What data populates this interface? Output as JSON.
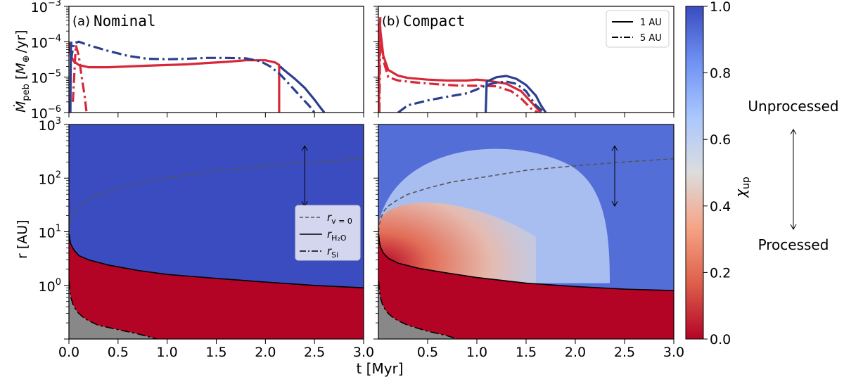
{
  "chart_data": [
    {
      "type": "line",
      "panel": "top-left",
      "label": "(a)",
      "title": "Nominal",
      "ylabel_mathtext": "Ṁ_peb [M⊕/yr]",
      "ylabel": {
        "mdot": "Ṁ",
        "sub": "peb",
        "pre": "[",
        "earth": "M",
        "earth_sub": "⊕",
        "post": "/yr]"
      },
      "yscale": "log",
      "ylim": [
        1e-06,
        0.001
      ],
      "xlim": [
        0,
        3
      ],
      "yticks": [
        {
          "base": "10",
          "exp": "−6",
          "value": 1e-06
        },
        {
          "base": "10",
          "exp": "−5",
          "value": 1e-05
        },
        {
          "base": "10",
          "exp": "−4",
          "value": 0.0001
        },
        {
          "base": "10",
          "exp": "−3",
          "value": 0.001
        }
      ],
      "series": [
        {
          "name": "",
          "color": "#d62839",
          "linestyle": "solid",
          "x": [
            0.003,
            0.02,
            0.05,
            0.1,
            0.2,
            0.4,
            0.6,
            0.8,
            1.0,
            1.2,
            1.4,
            1.6,
            1.8,
            2.0,
            2.1,
            2.14,
            2.14
          ],
          "y": [
            0.0001,
            4e-05,
            2.8e-05,
            2.2e-05,
            1.9e-05,
            1.9e-05,
            2e-05,
            2.1e-05,
            2.2e-05,
            2.3e-05,
            2.5e-05,
            2.7e-05,
            3e-05,
            3e-05,
            2.6e-05,
            2.2e-05,
            1e-06
          ]
        },
        {
          "name": "",
          "color": "#d62839",
          "linestyle": "dashdot",
          "x": [
            0.04,
            0.07,
            0.1,
            0.13,
            0.16,
            0.18
          ],
          "y": [
            2e-06,
            8e-05,
            4e-05,
            1e-05,
            3e-06,
            1e-06
          ]
        },
        {
          "name": "",
          "color": "#2b3f8e",
          "linestyle": "dashdot",
          "x": [
            0.02,
            0.05,
            0.1,
            0.2,
            0.4,
            0.6,
            0.8,
            1.0,
            1.2,
            1.4,
            1.6,
            1.8,
            1.95,
            2.05,
            2.15,
            2.25,
            2.35,
            2.45,
            2.5
          ],
          "y": [
            3e-05,
            9e-05,
            0.0001,
            8e-05,
            5.5e-05,
            4e-05,
            3.3e-05,
            3.2e-05,
            3.3e-05,
            3.5e-05,
            3.5e-05,
            3.4e-05,
            2.8e-05,
            2e-05,
            1.2e-05,
            6e-06,
            3e-06,
            1.5e-06,
            1e-06
          ]
        },
        {
          "name": "",
          "color": "#2b3f8e",
          "linestyle": "solid",
          "x": [
            0.015,
            0.017,
            0.02,
            0.025
          ],
          "y": [
            1e-06,
            1e-05,
            6e-05,
            0.0001
          ]
        },
        {
          "name": "",
          "color": "#2b3f8e",
          "linestyle": "solid",
          "x": [
            2.15,
            2.2,
            2.3,
            2.4,
            2.5,
            2.55,
            2.6
          ],
          "y": [
            2e-05,
            1.5e-05,
            9e-06,
            5e-06,
            2.3e-06,
            1.5e-06,
            1e-06
          ]
        }
      ]
    },
    {
      "type": "line",
      "panel": "top-right",
      "label": "(b)",
      "title": "Compact",
      "yscale": "log",
      "ylim": [
        1e-06,
        0.001
      ],
      "xlim": [
        0,
        3
      ],
      "legend": {
        "placement": "top-right",
        "entries": [
          {
            "label": "1 AU",
            "linestyle": "solid"
          },
          {
            "label": "5 AU",
            "linestyle": "dashdot"
          }
        ]
      },
      "series": [
        {
          "name": "",
          "color": "#d62839",
          "linestyle": "solid",
          "x": [
            0.01,
            0.03,
            0.05,
            0.1,
            0.2,
            0.3,
            0.5,
            0.7,
            0.9,
            1.0,
            1.1,
            1.3,
            1.45,
            1.55,
            1.65
          ],
          "y": [
            0.00035,
            0.00012,
            4e-05,
            1.6e-05,
            1.1e-05,
            9.5e-06,
            8.5e-06,
            8e-06,
            8e-06,
            8.5e-06,
            8e-06,
            6.5e-06,
            4e-06,
            2e-06,
            1e-06
          ]
        },
        {
          "name": "",
          "color": "#d62839",
          "linestyle": "dashdot",
          "x": [
            0.01,
            0.03,
            0.05,
            0.1,
            0.2,
            0.4,
            0.6,
            0.8,
            1.0,
            1.2,
            1.35,
            1.45,
            1.55,
            1.62
          ],
          "y": [
            0.0003,
            0.0001,
            3e-05,
            1e-05,
            8e-06,
            7e-06,
            6.3e-06,
            5.8e-06,
            5.7e-06,
            5.5e-06,
            4e-06,
            2.5e-06,
            1.3e-06,
            1e-06
          ]
        },
        {
          "name": "",
          "color": "#2b3f8e",
          "linestyle": "dashdot",
          "x": [
            0.2,
            0.3,
            0.5,
            0.7,
            0.9,
            1.0,
            1.1,
            1.2,
            1.3,
            1.4,
            1.5,
            1.55,
            1.6,
            1.65,
            1.7
          ],
          "y": [
            1e-06,
            1.6e-06,
            2.2e-06,
            2.8e-06,
            3.5e-06,
            4.5e-06,
            6e-06,
            7e-06,
            7.5e-06,
            6.5e-06,
            4e-06,
            2.5e-06,
            1.6e-06,
            1.2e-06,
            1e-06
          ]
        },
        {
          "name": "",
          "color": "#2b3f8e",
          "linestyle": "solid",
          "x": [
            1.09,
            1.1,
            1.2,
            1.3,
            1.4,
            1.5,
            1.6,
            1.65,
            1.7
          ],
          "y": [
            1e-06,
            7.5e-06,
            1e-05,
            1.08e-05,
            9e-06,
            6e-06,
            3e-06,
            1.6e-06,
            1e-06
          ]
        },
        {
          "name": "",
          "color": "#d62839",
          "linestyle": "solid",
          "x": [
            0.005,
            0.01,
            0.02
          ],
          "y": [
            1e-06,
            0.0001,
            0.0005
          ]
        },
        {
          "name": "",
          "color": "#d62839",
          "linestyle": "dashdot",
          "x": [
            0.01,
            0.02
          ],
          "y": [
            1e-06,
            0.0003
          ]
        }
      ]
    },
    {
      "type": "heatmap",
      "panel": "bottom-left",
      "ylabel": "r [AU]",
      "yscale": "log",
      "ylim": [
        0.1,
        1000
      ],
      "xlim": [
        0,
        3
      ],
      "yticks": [
        {
          "base": "10",
          "exp": "0",
          "value": 1
        },
        {
          "base": "10",
          "exp": "1",
          "value": 10
        },
        {
          "base": "10",
          "exp": "2",
          "value": 100
        },
        {
          "base": "10",
          "exp": "3",
          "value": 1000
        }
      ],
      "xticks": [
        "0.0",
        "0.5",
        "1.0",
        "1.5",
        "2.0",
        "2.5",
        "3.0"
      ],
      "xtick_values": [
        0,
        0.5,
        1,
        1.5,
        2,
        2.5,
        3
      ],
      "legend": {
        "placement": "center-right",
        "entries": [
          {
            "base": "r",
            "sub": "v = 0",
            "linestyle": "dashed"
          },
          {
            "base": "r",
            "sub": "H₂O",
            "linestyle": "solid"
          },
          {
            "base": "r",
            "sub": "Si",
            "linestyle": "dashdot"
          }
        ]
      },
      "arrow": {
        "x": 2.4,
        "r_from": 30,
        "r_to": 400
      },
      "r_v0": {
        "x": [
          0.003,
          0.01,
          0.03,
          0.06,
          0.1,
          0.2,
          0.3,
          0.5,
          0.75,
          1.0,
          1.5,
          2.0,
          2.5,
          3.0
        ],
        "y": [
          10,
          14,
          19,
          25,
          30,
          40,
          50,
          65,
          85,
          100,
          140,
          170,
          200,
          230
        ]
      },
      "r_h2o": {
        "x": [
          0.003,
          0.01,
          0.02,
          0.05,
          0.1,
          0.2,
          0.4,
          0.7,
          1.0,
          1.5,
          2.0,
          2.5,
          3.0
        ],
        "y": [
          9,
          7,
          5.8,
          4.6,
          3.6,
          3.0,
          2.4,
          1.9,
          1.6,
          1.35,
          1.15,
          1.0,
          0.9
        ]
      },
      "r_si": {
        "x": [
          0.003,
          0.01,
          0.02,
          0.04,
          0.07,
          0.1,
          0.15,
          0.2,
          0.3,
          0.5,
          0.7,
          0.9
        ],
        "y": [
          1.2,
          0.8,
          0.6,
          0.45,
          0.35,
          0.3,
          0.25,
          0.22,
          0.18,
          0.15,
          0.125,
          0.1
        ]
      },
      "regions": {
        "above_h2o": 1.0,
        "between": 0.0
      }
    },
    {
      "type": "heatmap",
      "panel": "bottom-right",
      "yscale": "log",
      "ylim": [
        0.1,
        1000
      ],
      "xlim": [
        0,
        3
      ],
      "xticks": [
        "0.5",
        "1.0",
        "1.5",
        "2.0",
        "2.5",
        "3.0"
      ],
      "xtick_values": [
        0.5,
        1,
        1.5,
        2,
        2.5,
        3
      ],
      "arrow": {
        "x": 2.4,
        "r_from": 30,
        "r_to": 400
      },
      "r_v0": {
        "x": [
          0.003,
          0.01,
          0.03,
          0.06,
          0.1,
          0.2,
          0.3,
          0.5,
          0.75,
          1.0,
          1.5,
          2.0,
          2.5,
          3.0
        ],
        "y": [
          10,
          14,
          19,
          25,
          30,
          40,
          50,
          65,
          85,
          100,
          140,
          170,
          200,
          230
        ]
      },
      "r_h2o": {
        "x": [
          0.003,
          0.01,
          0.02,
          0.05,
          0.1,
          0.2,
          0.4,
          0.7,
          1.0,
          1.5,
          2.0,
          2.5,
          3.0
        ],
        "y": [
          9,
          6.5,
          5.3,
          4.0,
          3.2,
          2.6,
          2.1,
          1.7,
          1.4,
          1.1,
          0.95,
          0.85,
          0.8
        ]
      },
      "r_si": {
        "x": [
          0.003,
          0.01,
          0.02,
          0.04,
          0.07,
          0.1,
          0.15,
          0.2,
          0.3,
          0.5,
          0.7,
          0.8
        ],
        "y": [
          1.2,
          0.8,
          0.6,
          0.45,
          0.35,
          0.3,
          0.25,
          0.22,
          0.18,
          0.14,
          0.115,
          0.1
        ]
      },
      "unprocessed_region": {
        "x_end": 2.35,
        "r_top": 600,
        "min_chi": 0.0,
        "plume_chi": 0.62
      },
      "regions": {
        "above_h2o": 0.92,
        "between": 0.0
      }
    }
  ],
  "xlabel": "t [Myr]",
  "colorbar": {
    "label_base": "χ",
    "label_sub": "up",
    "range": [
      0,
      1
    ],
    "ticks": [
      "0.0",
      "0.2",
      "0.4",
      "0.6",
      "0.8",
      "1.0"
    ],
    "tick_values": [
      0,
      0.2,
      0.4,
      0.6,
      0.8,
      1.0
    ],
    "colors": [
      "#b40426",
      "#dd5f4b",
      "#f6a385",
      "#dcdddd",
      "#aac7fd",
      "#6f92f3",
      "#3b4cc0"
    ]
  },
  "annotations": {
    "top": "Unprocessed",
    "bottom": "Processed"
  },
  "colors": {
    "red": "#d62839",
    "blue": "#2b3f8e",
    "gray": "#888888"
  }
}
